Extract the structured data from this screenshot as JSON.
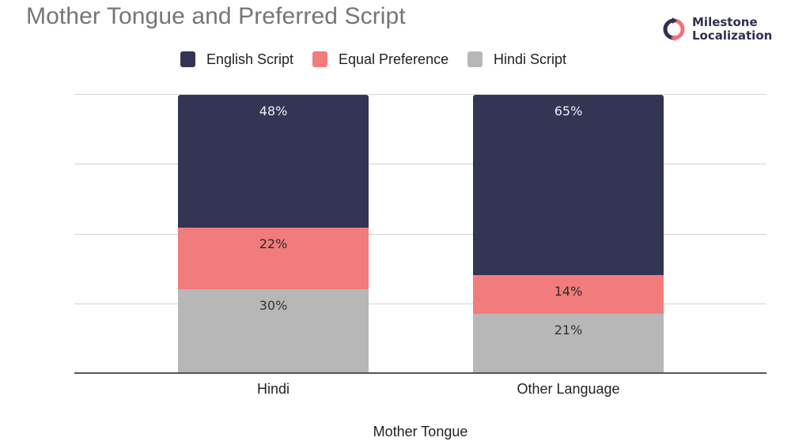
{
  "chart_data": {
    "type": "bar",
    "stacked": true,
    "title": "Mother Tongue and Preferred Script",
    "xlabel": "Mother Tongue",
    "ylabel": "",
    "categories": [
      "Hindi",
      "Other Language"
    ],
    "series": [
      {
        "name": "Hindi Script",
        "color": "#b7b7b7",
        "values": [
          30,
          21
        ],
        "labels": [
          "30%",
          "21%"
        ],
        "label_color": "#333333"
      },
      {
        "name": "Equal Preference",
        "color": "#f27b7c",
        "values": [
          22,
          14
        ],
        "labels": [
          "22%",
          "14%"
        ],
        "label_color": "#2b2b2b"
      },
      {
        "name": "English Script",
        "color": "#343455",
        "values": [
          48,
          65
        ],
        "labels": [
          "48%",
          "65%"
        ],
        "label_color": "#eeeeee"
      }
    ],
    "ylim": [
      0,
      100
    ],
    "y_gridlines": [
      25,
      50,
      75,
      100
    ],
    "y_tick_labels_visible": false,
    "grid": true,
    "legend": {
      "position": "top",
      "order": [
        "English Script",
        "Equal Preference",
        "Hindi Script"
      ]
    }
  },
  "header": {
    "title": "Mother Tongue and Preferred Script"
  },
  "logo": {
    "line1": "Milestone",
    "line2": "Localization",
    "icon": "circular-arrows-icon",
    "colors": {
      "left": "#2f3052",
      "right": "#f07277"
    }
  },
  "legend": {
    "items": [
      {
        "label": "English Script",
        "color": "#343455"
      },
      {
        "label": "Equal Preference",
        "color": "#f27b7c"
      },
      {
        "label": "Hindi Script",
        "color": "#b7b7b7"
      }
    ]
  },
  "bars": [
    {
      "category": "Hindi",
      "segments": [
        {
          "series": "Hindi Script",
          "value": 30,
          "label": "30%"
        },
        {
          "series": "Equal Preference",
          "value": 22,
          "label": "22%"
        },
        {
          "series": "English Script",
          "value": 48,
          "label": "48%"
        }
      ]
    },
    {
      "category": "Other Language",
      "segments": [
        {
          "series": "Hindi Script",
          "value": 21,
          "label": "21%"
        },
        {
          "series": "Equal Preference",
          "value": 14,
          "label": "14%"
        },
        {
          "series": "English Script",
          "value": 65,
          "label": "65%"
        }
      ]
    }
  ],
  "axis": {
    "x_title": "Mother Tongue"
  }
}
